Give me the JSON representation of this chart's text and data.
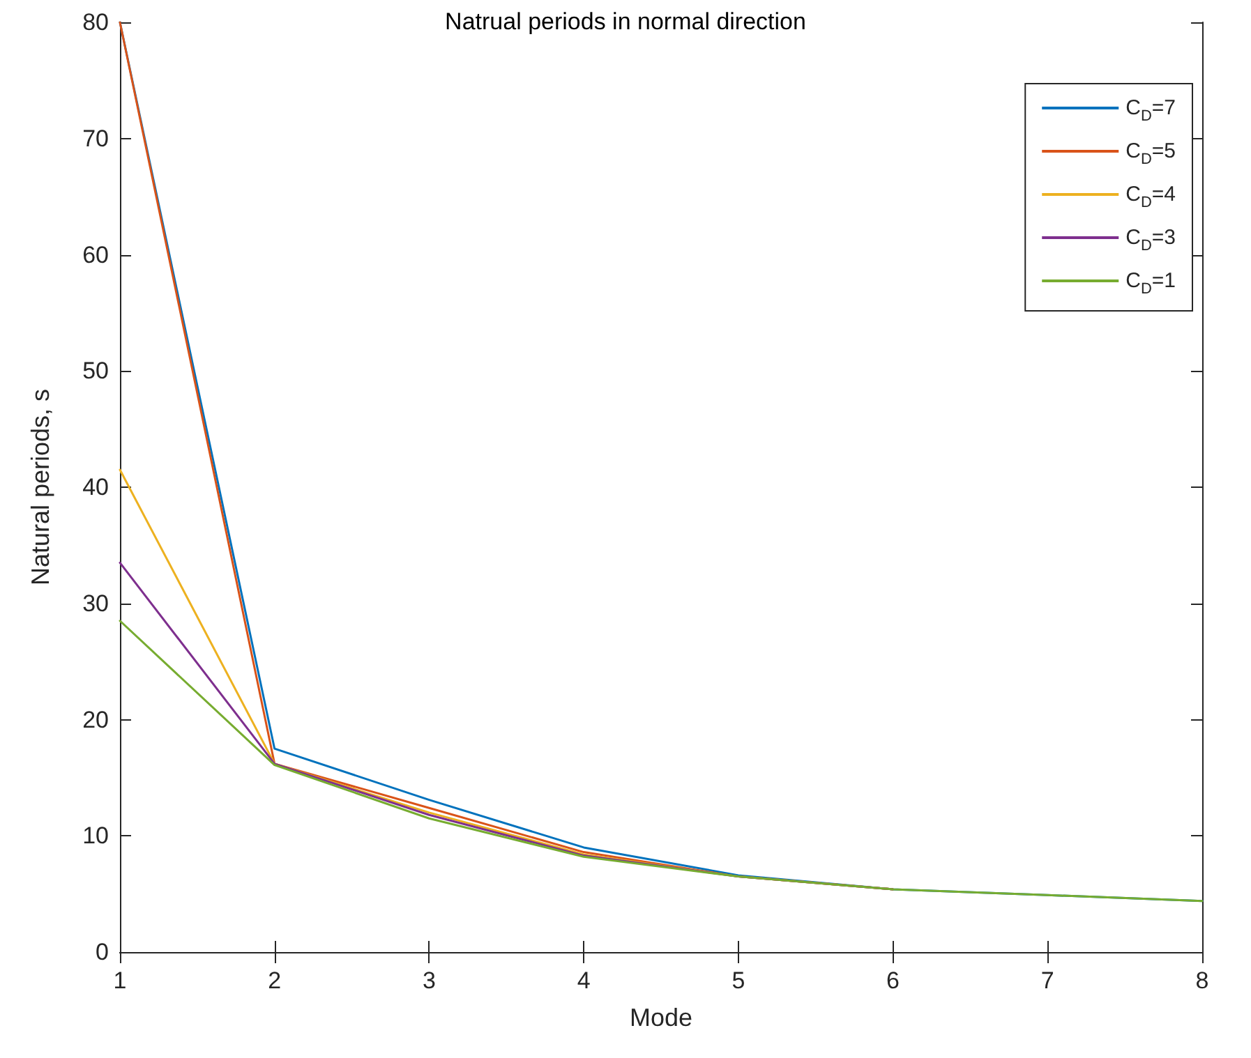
{
  "chart_data": {
    "type": "line",
    "title": "Natrual periods in normal direction",
    "xlabel": "Mode",
    "ylabel": "Natural periods, s",
    "x": [
      1,
      2,
      3,
      4,
      5,
      6,
      7,
      8
    ],
    "series": [
      {
        "name": "C$_{D}$=7",
        "color": "#0072bd",
        "values": [
          80,
          17.5,
          13.1,
          9.0,
          6.6,
          5.4,
          4.9,
          4.4
        ]
      },
      {
        "name": "C$_{D}$=5",
        "color": "#d95319",
        "values": [
          80,
          16.2,
          12.4,
          8.6,
          6.5,
          5.4,
          null,
          null
        ]
      },
      {
        "name": "C$_{D}$=4",
        "color": "#edb120",
        "values": [
          41.5,
          16.2,
          12.0,
          8.4,
          6.5,
          5.4,
          null,
          null
        ]
      },
      {
        "name": "C$_{D}$=3",
        "color": "#7e2f8e",
        "values": [
          33.5,
          16.2,
          11.8,
          8.3,
          6.5,
          5.4,
          null,
          null
        ]
      },
      {
        "name": "C$_{D}$=1",
        "color": "#77ac30",
        "values": [
          28.5,
          16.1,
          11.5,
          8.2,
          6.5,
          5.4,
          4.9,
          4.4
        ]
      }
    ],
    "xlim": [
      1,
      8
    ],
    "xticks": [
      1,
      2,
      3,
      4,
      5,
      6,
      7,
      8
    ],
    "ylim": [
      0,
      80
    ],
    "yticks": [
      0,
      10,
      20,
      30,
      40,
      50,
      60,
      70,
      80
    ],
    "grid": false,
    "legend": "top right",
    "marker": "none",
    "line_style": "solid"
  }
}
